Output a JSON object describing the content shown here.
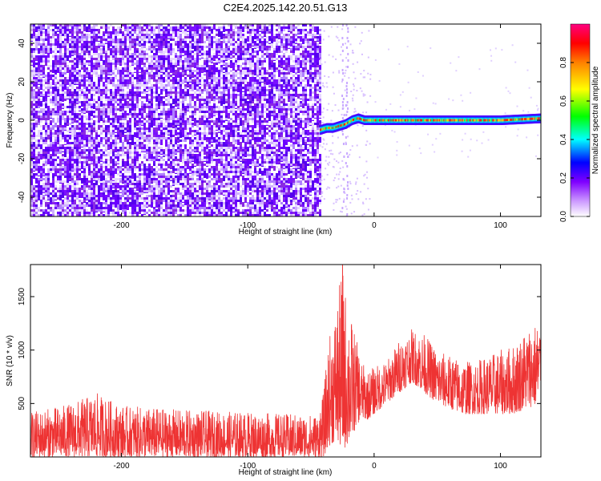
{
  "title": "C2E4.2025.142.20.51.G13",
  "chart_data": [
    {
      "type": "heatmap",
      "xlabel": "Height of straight line (km)",
      "ylabel": "Frequency (Hz)",
      "xlim": [
        -272,
        132
      ],
      "ylim": [
        -50,
        50
      ],
      "x_ticks": [
        -200,
        -100,
        0,
        100
      ],
      "x_tick_labels": [
        "-200",
        "-100",
        "0",
        "100"
      ],
      "y_ticks": [
        -40,
        -20,
        0,
        20,
        40
      ],
      "y_tick_labels": [
        "-40",
        "-20",
        "0",
        "20",
        "40"
      ],
      "colorbar": {
        "label": "Normalized spectral amplitude",
        "range": [
          0,
          1
        ],
        "ticks": [
          0,
          0.2,
          0.4,
          0.6,
          0.8
        ],
        "tick_labels": [
          "0.0",
          "0.2",
          "0.4",
          "0.6",
          "0.8"
        ],
        "colors": [
          "#ffffff",
          "#8a2be2",
          "#0000ff",
          "#00ffff",
          "#00ff00",
          "#ffff00",
          "#ff8000",
          "#ff0000",
          "#ff0080"
        ]
      },
      "regions": [
        {
          "name": "noise",
          "x_range": [
            -272,
            -43
          ],
          "freq_range": [
            -50,
            50
          ],
          "amplitude": [
            0.1,
            0.25
          ]
        },
        {
          "name": "signal",
          "x_range": [
            -43,
            132
          ],
          "freq_center": [
            -5,
            1
          ],
          "amplitude": [
            0.5,
            0.9
          ]
        }
      ],
      "signal_track": {
        "x": [
          -43,
          -38,
          -33,
          -28,
          -23,
          -18,
          -13,
          -8,
          0,
          20,
          60,
          100,
          132
        ],
        "freq": [
          -5,
          -4,
          -4,
          -3,
          -2,
          0,
          1,
          0,
          0,
          0,
          0,
          0,
          1
        ]
      }
    },
    {
      "type": "line",
      "xlabel": "Height of straight line (km)",
      "ylabel": "SNR (10 * v/v)",
      "xlim": [
        -272,
        132
      ],
      "ylim": [
        0,
        1800
      ],
      "x_ticks": [
        -200,
        -100,
        0,
        100
      ],
      "x_tick_labels": [
        "-200",
        "-100",
        "0",
        "100"
      ],
      "y_ticks": [
        500,
        1000,
        1500
      ],
      "y_tick_labels": [
        "500",
        "1000",
        "1500"
      ],
      "series_color": "#ee3333",
      "envelope": {
        "x": [
          -272,
          -240,
          -220,
          -200,
          -150,
          -100,
          -60,
          -45,
          -40,
          -36,
          -30,
          -25,
          -22,
          -18,
          -14,
          -10,
          -5,
          0,
          10,
          20,
          30,
          40,
          50,
          60,
          70,
          80,
          90,
          100,
          110,
          120,
          132
        ],
        "lower": [
          0,
          0,
          0,
          0,
          0,
          0,
          0,
          0,
          0,
          100,
          150,
          50,
          100,
          150,
          300,
          350,
          350,
          400,
          500,
          600,
          700,
          600,
          500,
          450,
          400,
          400,
          400,
          400,
          400,
          450,
          500
        ],
        "upper": [
          420,
          500,
          600,
          480,
          440,
          420,
          400,
          400,
          600,
          1100,
          1400,
          1800,
          1500,
          1300,
          1100,
          900,
          800,
          850,
          900,
          1100,
          1200,
          1150,
          1000,
          950,
          900,
          900,
          950,
          1000,
          1050,
          1200,
          1300
        ]
      },
      "peak": {
        "x": -25,
        "y": 1800
      }
    }
  ]
}
